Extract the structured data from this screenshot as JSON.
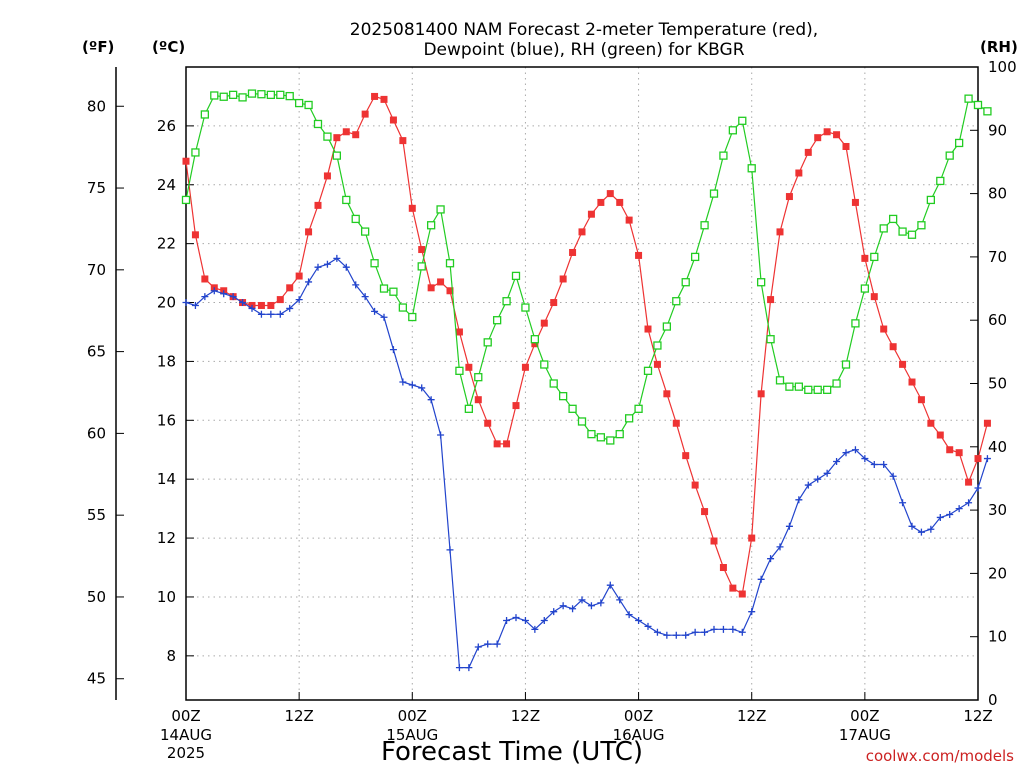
{
  "chart_data": {
    "type": "line",
    "title_line1": "2025081400 NAM Forecast 2-meter Temperature (red),",
    "title_line2": "Dewpoint (blue), RH (green) for KBGR",
    "xlabel": "Forecast Time (UTC)",
    "credit": "coolwx.com/models",
    "units": {
      "fahrenheit": "(ºF)",
      "celsius": "(ºC)",
      "rh": "(RH)"
    },
    "x_range_hours": [
      0,
      84
    ],
    "x_ticks": [
      {
        "hour": 0,
        "line1": "00Z",
        "line2": "14AUG",
        "line3": "2025"
      },
      {
        "hour": 12,
        "line1": "12Z",
        "line2": "",
        "line3": ""
      },
      {
        "hour": 24,
        "line1": "00Z",
        "line2": "15AUG",
        "line3": ""
      },
      {
        "hour": 36,
        "line1": "12Z",
        "line2": "",
        "line3": ""
      },
      {
        "hour": 48,
        "line1": "00Z",
        "line2": "16AUG",
        "line3": ""
      },
      {
        "hour": 60,
        "line1": "12Z",
        "line2": "",
        "line3": ""
      },
      {
        "hour": 72,
        "line1": "00Z",
        "line2": "17AUG",
        "line3": ""
      },
      {
        "hour": 84,
        "line1": "12Z",
        "line2": "",
        "line3": ""
      }
    ],
    "celsius_axis": {
      "range": [
        6.5,
        28.0
      ],
      "ticks": [
        8,
        10,
        12,
        14,
        16,
        18,
        20,
        22,
        24,
        26
      ]
    },
    "fahrenheit_axis": {
      "ticks": [
        45,
        50,
        55,
        60,
        65,
        70,
        75,
        80
      ]
    },
    "rh_axis": {
      "range": [
        0,
        100
      ],
      "ticks": [
        0,
        10,
        20,
        30,
        40,
        50,
        60,
        70,
        80,
        90,
        100
      ]
    },
    "grid": true,
    "series": [
      {
        "name": "Temperature",
        "axis": "celsius",
        "color": "#ee3333",
        "marker": "filled-square",
        "values": [
          24.8,
          22.3,
          20.8,
          20.5,
          20.4,
          20.2,
          20.0,
          19.9,
          19.9,
          19.9,
          20.1,
          20.5,
          20.9,
          22.4,
          23.3,
          24.3,
          25.6,
          25.8,
          25.7,
          26.4,
          27.0,
          26.9,
          26.2,
          25.5,
          23.2,
          21.8,
          20.5,
          20.7,
          20.4,
          19.0,
          17.8,
          16.7,
          15.9,
          15.2,
          15.2,
          16.5,
          17.8,
          18.6,
          19.3,
          20.0,
          20.8,
          21.7,
          22.4,
          23.0,
          23.4,
          23.7,
          23.4,
          22.8,
          21.6,
          19.1,
          17.9,
          16.9,
          15.9,
          14.8,
          13.8,
          12.9,
          11.9,
          11.0,
          10.3,
          10.1,
          12.0,
          16.9,
          20.1,
          22.4,
          23.6,
          24.4,
          25.1,
          25.6,
          25.8,
          25.7,
          25.3,
          23.4,
          21.5,
          20.2,
          19.1,
          18.5,
          17.9,
          17.3,
          16.7,
          15.9,
          15.5,
          15.0,
          14.9,
          13.9,
          14.7,
          15.9
        ]
      },
      {
        "name": "Dewpoint",
        "axis": "celsius",
        "color": "#2244cc",
        "marker": "plus",
        "values": [
          20.0,
          19.9,
          20.2,
          20.4,
          20.3,
          20.2,
          20.0,
          19.8,
          19.6,
          19.6,
          19.6,
          19.8,
          20.1,
          20.7,
          21.2,
          21.3,
          21.5,
          21.2,
          20.6,
          20.2,
          19.7,
          19.5,
          18.4,
          17.3,
          17.2,
          17.1,
          16.7,
          15.5,
          11.6,
          7.6,
          7.6,
          8.3,
          8.4,
          8.4,
          9.2,
          9.3,
          9.2,
          8.9,
          9.2,
          9.5,
          9.7,
          9.6,
          9.9,
          9.7,
          9.8,
          10.4,
          9.9,
          9.4,
          9.2,
          9.0,
          8.8,
          8.7,
          8.7,
          8.7,
          8.8,
          8.8,
          8.9,
          8.9,
          8.9,
          8.8,
          9.5,
          10.6,
          11.3,
          11.7,
          12.4,
          13.3,
          13.8,
          14.0,
          14.2,
          14.6,
          14.9,
          15.0,
          14.7,
          14.5,
          14.5,
          14.1,
          13.2,
          12.4,
          12.2,
          12.3,
          12.7,
          12.8,
          13.0,
          13.2,
          13.7,
          14.7
        ]
      },
      {
        "name": "RH",
        "axis": "rh",
        "color": "#22cc22",
        "marker": "open-square",
        "values": [
          79.0,
          86.5,
          92.5,
          95.5,
          95.3,
          95.6,
          95.2,
          95.8,
          95.7,
          95.6,
          95.6,
          95.4,
          94.3,
          94.0,
          91.0,
          89.0,
          86.0,
          79.0,
          76.0,
          74.0,
          69.0,
          65.0,
          64.5,
          62.0,
          60.5,
          68.5,
          75.0,
          77.5,
          69.0,
          52.0,
          46.0,
          51.0,
          56.5,
          60.0,
          63.0,
          67.0,
          62.0,
          57.0,
          53.0,
          50.0,
          48.0,
          46.0,
          44.0,
          42.0,
          41.5,
          41.0,
          42.0,
          44.5,
          46.0,
          52.0,
          56.0,
          59.0,
          63.0,
          66.0,
          70.0,
          75.0,
          80.0,
          86.0,
          90.0,
          91.5,
          84.0,
          66.0,
          57.0,
          50.5,
          49.5,
          49.5,
          49.0,
          49.0,
          49.0,
          50.0,
          53.0,
          59.5,
          65.0,
          70.0,
          74.5,
          76.0,
          74.0,
          73.5,
          75.0,
          79.0,
          82.0,
          86.0,
          88.0,
          95.0,
          94.0,
          93.0
        ]
      }
    ]
  }
}
